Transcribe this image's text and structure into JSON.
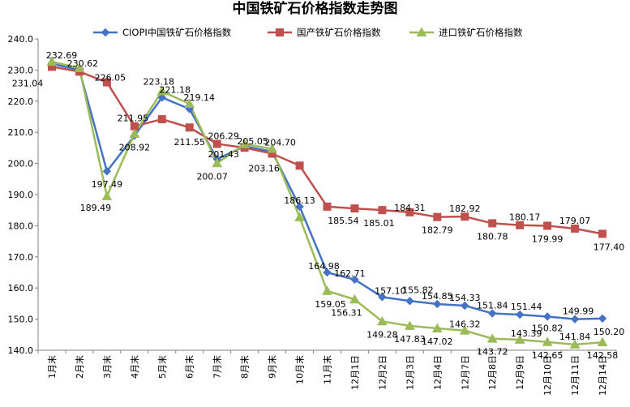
{
  "chart_data": {
    "type": "line",
    "title": "中国铁矿石价格指数走势图",
    "xlabel": "",
    "ylabel": "",
    "ylim": [
      140,
      240
    ],
    "yticks": [
      "240.0",
      "230.0",
      "220.0",
      "210.0",
      "200.0",
      "190.0",
      "180.0",
      "170.0",
      "160.0",
      "150.0",
      "140.0"
    ],
    "grid": false,
    "legend_position": "top",
    "categories": [
      "1月末",
      "2月末",
      "3月末",
      "4月末",
      "5月末",
      "6月末",
      "7月末",
      "8月末",
      "9月末",
      "10月末",
      "11月末",
      "12月1日",
      "12月2日",
      "12月3日",
      "12月4日",
      "12月7日",
      "12月8日",
      "12月9日",
      "12月10日",
      "12月11日",
      "12月14日"
    ],
    "series": [
      {
        "name": "CIOPI中国铁矿石价格指数",
        "color": "#4472C4",
        "marker": "diamond",
        "values": [
          232.0,
          230.0,
          197.49,
          208.92,
          221.18,
          217.5,
          201.43,
          205.5,
          203.8,
          186.13,
          164.98,
          162.71,
          157.1,
          155.82,
          154.85,
          154.33,
          151.84,
          151.44,
          150.82,
          149.99,
          150.2
        ],
        "labels": [
          null,
          null,
          "197.49",
          "208.92",
          "221.18",
          null,
          "201.43",
          null,
          null,
          "186.13",
          "164.98",
          "162.71",
          "157.10",
          "155.82",
          "154.85",
          "154.33",
          "151.84",
          "151.44",
          "150.82",
          "149.99",
          "150.20"
        ]
      },
      {
        "name": "国产铁矿石价格指数",
        "color": "#C0504D",
        "marker": "square",
        "values": [
          231.04,
          229.5,
          226.05,
          211.95,
          214.2,
          211.55,
          206.29,
          205.05,
          203.16,
          199.3,
          186.13,
          185.54,
          185.01,
          184.31,
          182.79,
          182.92,
          180.78,
          180.17,
          179.99,
          179.07,
          177.4
        ],
        "labels": [
          "231.04",
          null,
          "226.05",
          "211.95",
          null,
          "211.55",
          "206.29",
          "205.05",
          "203.16",
          null,
          null,
          "185.54",
          "185.01",
          "184.31",
          "182.79",
          "182.92",
          "180.78",
          "180.17",
          "179.99",
          "179.07",
          "177.40"
        ]
      },
      {
        "name": "进口铁矿石价格指数",
        "color": "#9BBB59",
        "marker": "triangle",
        "values": [
          232.69,
          230.62,
          189.49,
          209.5,
          223.18,
          219.14,
          200.07,
          206.2,
          204.7,
          182.7,
          159.05,
          156.31,
          149.28,
          147.83,
          147.02,
          146.32,
          143.72,
          143.39,
          142.65,
          141.84,
          142.58
        ],
        "labels": [
          "232.69",
          "230.62",
          "189.49",
          null,
          "223.18",
          "219.14",
          "200.07",
          null,
          "204.70",
          null,
          "159.05",
          "156.31",
          "149.28",
          "147.83",
          "147.02",
          "146.32",
          "143.72",
          "143.39",
          "142.65",
          "141.84",
          "142.58"
        ]
      }
    ]
  }
}
